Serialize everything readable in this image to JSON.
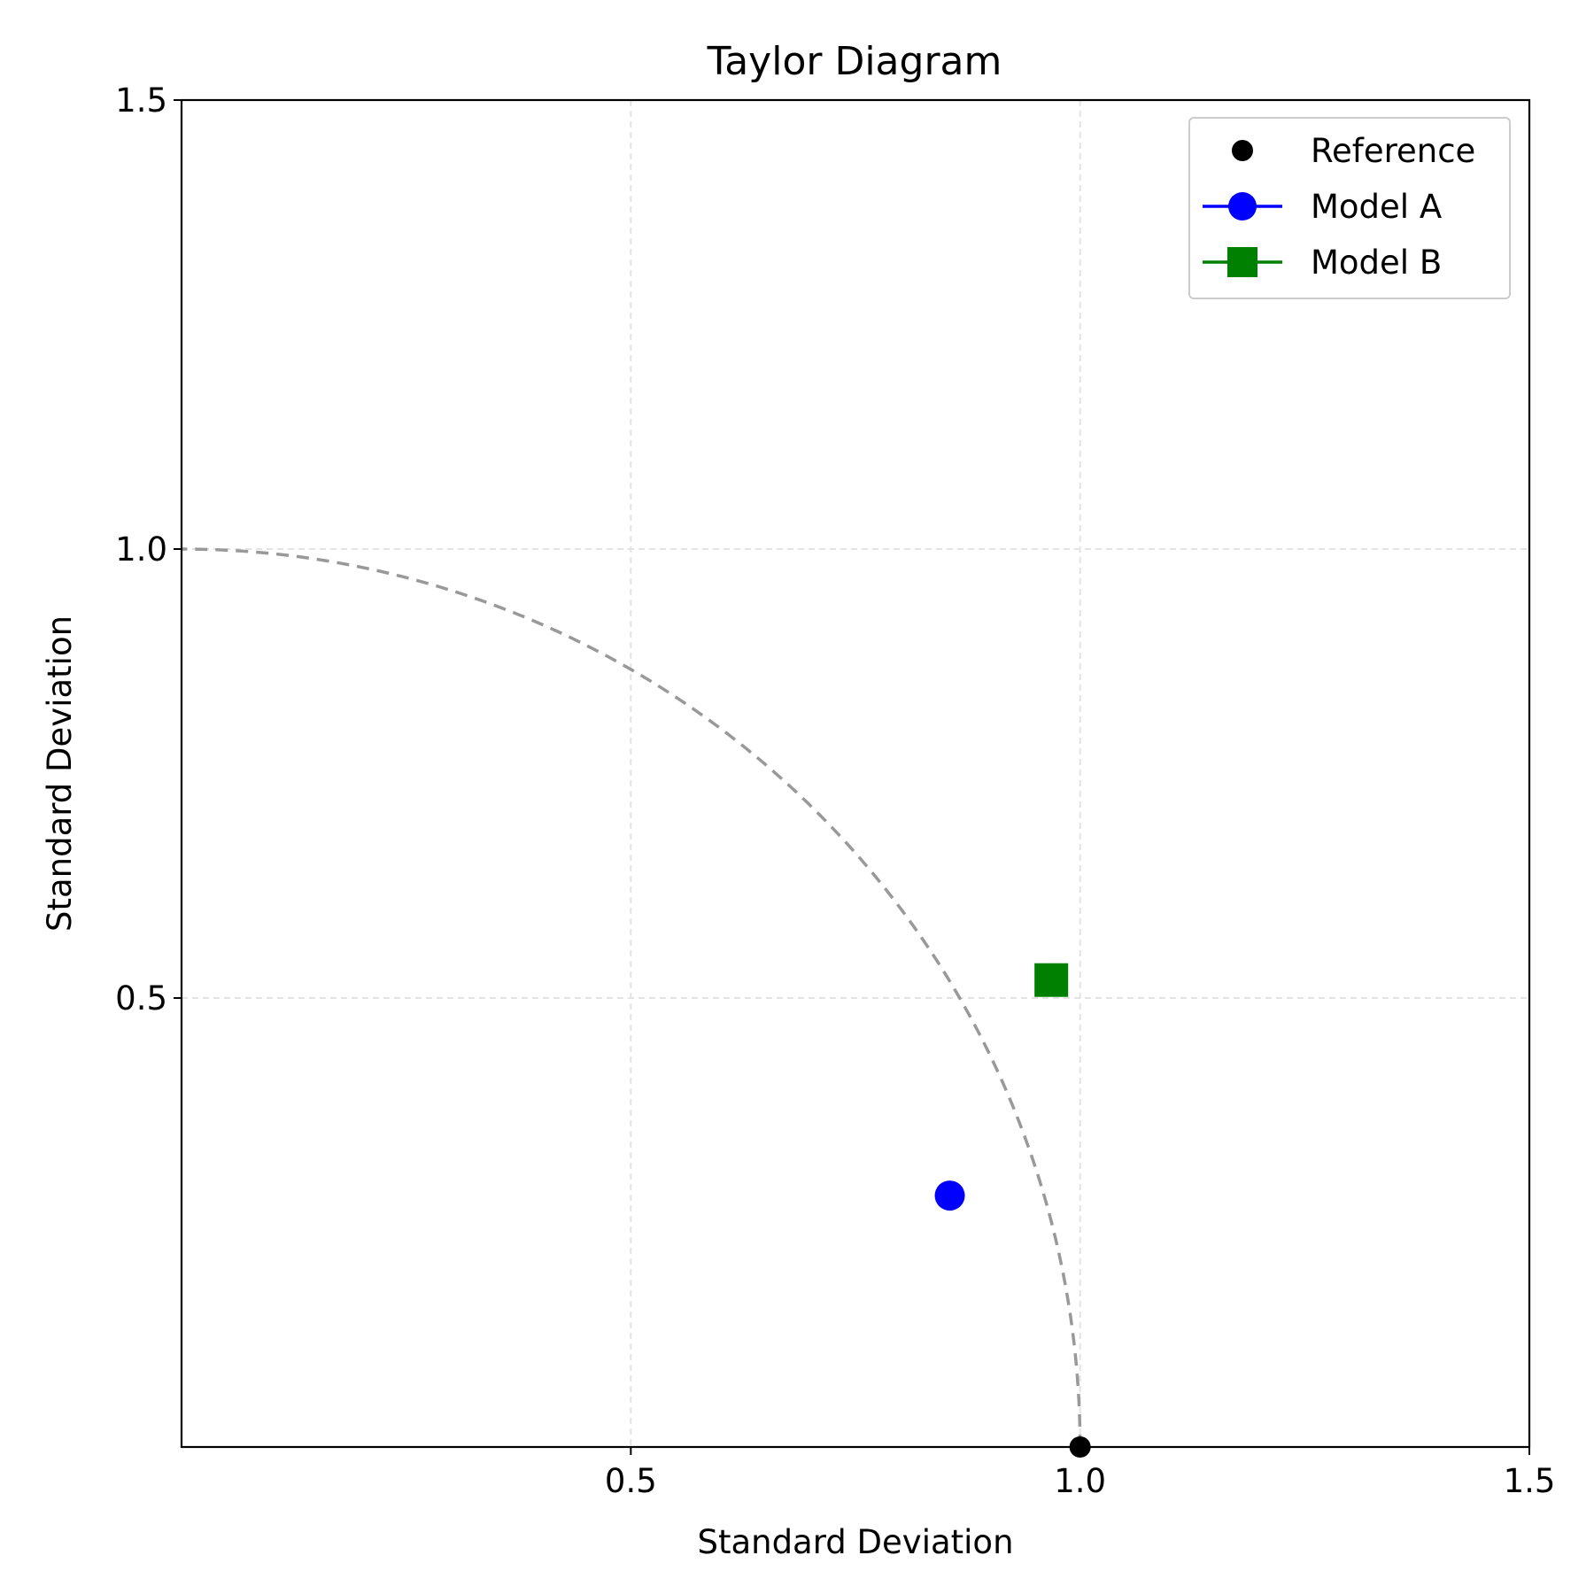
{
  "chart_data": {
    "type": "scatter",
    "title": "Taylor Diagram",
    "xlabel": "Standard Deviation",
    "ylabel": "Standard Deviation",
    "xlim": [
      0,
      1.5
    ],
    "ylim": [
      0,
      1.5
    ],
    "xticks": [
      0.5,
      1.0,
      1.5
    ],
    "yticks": [
      0.5,
      1.0,
      1.5
    ],
    "xtick_labels": [
      "0.5",
      "1.0",
      "1.5"
    ],
    "ytick_labels": [
      "0.5",
      "1.0",
      "1.5"
    ],
    "grid": true,
    "legend_position": "top-right",
    "reference_arc_radius": 1.0,
    "series": [
      {
        "name": "Reference",
        "marker": "circle",
        "color": "#000000",
        "x": 1.0,
        "y": 0.0
      },
      {
        "name": "Model A",
        "marker": "circle",
        "color": "#0000ff",
        "x": 0.855,
        "y": 0.28
      },
      {
        "name": "Model B",
        "marker": "square",
        "color": "#008000",
        "x": 0.968,
        "y": 0.52
      }
    ]
  }
}
